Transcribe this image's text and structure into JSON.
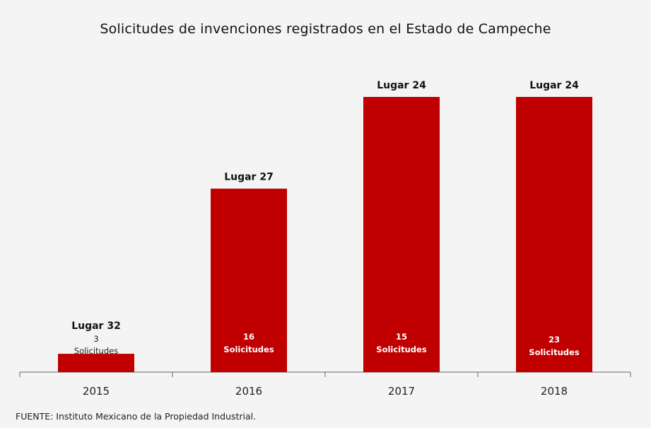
{
  "chart_data": {
    "type": "bar",
    "title": "Solicitudes de invenciones registrados en el Estado de Campeche",
    "categories": [
      "2015",
      "2016",
      "2017",
      "2018"
    ],
    "series": [
      {
        "values": [
          3,
          16,
          15,
          23
        ],
        "color": "#c00000"
      }
    ],
    "ranks": [
      "Lugar 32",
      "Lugar 27",
      "Lugar 24",
      "Lugar 24"
    ],
    "bar_heights_ranked_display": [
      1,
      10,
      15,
      15
    ],
    "value_labels": [
      {
        "number": "3",
        "unit": "Solicitudes"
      },
      {
        "number": "16",
        "unit": "Solicitudes"
      },
      {
        "number": "15",
        "unit": "Solicitudes"
      },
      {
        "number": "23",
        "unit": "Solicitudes"
      }
    ],
    "xlabel": "",
    "ylabel": "",
    "grid": false,
    "legend": "none"
  },
  "source": "FUENTE: Instituto Mexicano de la Propiedad Industrial."
}
